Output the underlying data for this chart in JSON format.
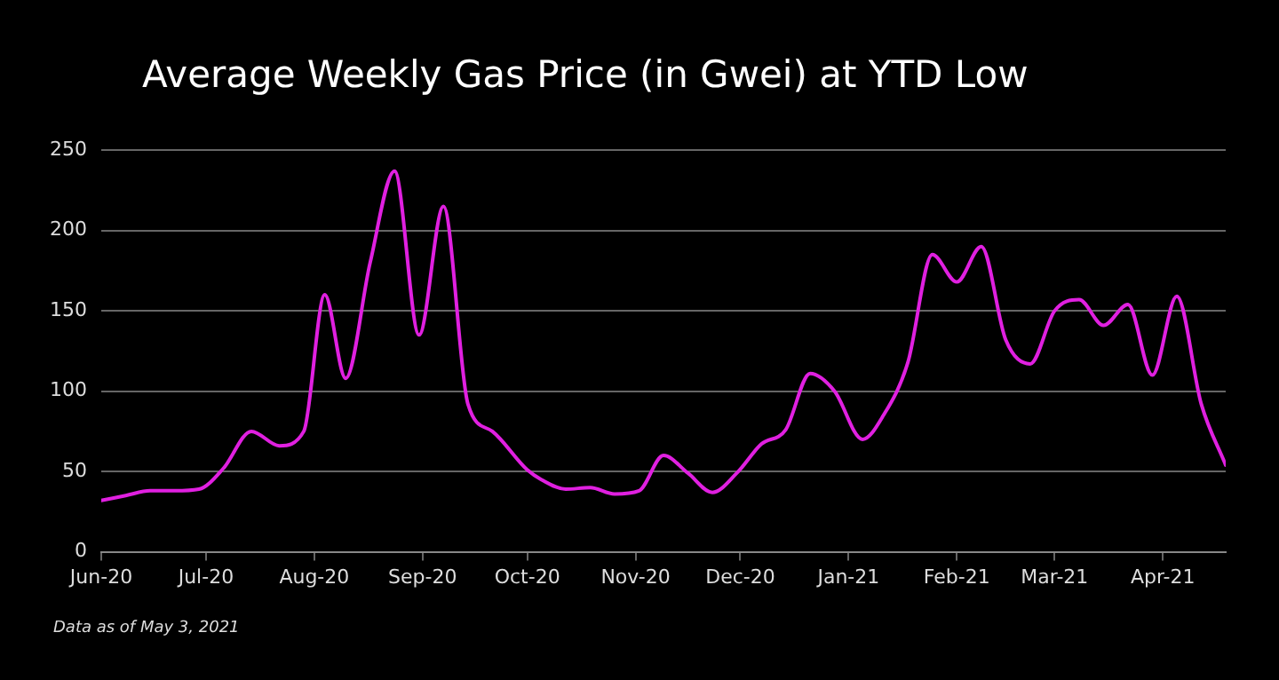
{
  "chart_data": {
    "type": "line",
    "title": "Average Weekly Gas Price (in Gwei) at YTD Low",
    "x": [
      "2020-06-01",
      "2020-06-08",
      "2020-06-15",
      "2020-06-22",
      "2020-06-29",
      "2020-07-06",
      "2020-07-14",
      "2020-07-22",
      "2020-07-29",
      "2020-08-04",
      "2020-08-10",
      "2020-08-17",
      "2020-08-24",
      "2020-08-31",
      "2020-09-07",
      "2020-09-14",
      "2020-09-21",
      "2020-10-01",
      "2020-10-05",
      "2020-10-12",
      "2020-10-19",
      "2020-10-26",
      "2020-11-02",
      "2020-11-09",
      "2020-11-16",
      "2020-11-23",
      "2020-11-30",
      "2020-12-07",
      "2020-12-14",
      "2020-12-21",
      "2020-12-28",
      "2021-01-05",
      "2021-01-11",
      "2021-01-18",
      "2021-01-25",
      "2021-02-01",
      "2021-02-08",
      "2021-02-15",
      "2021-02-22",
      "2021-03-01",
      "2021-03-08",
      "2021-03-15",
      "2021-03-22",
      "2021-03-29",
      "2021-04-05",
      "2021-04-12",
      "2021-04-19"
    ],
    "series": [
      {
        "color": "#e020e0",
        "values": [
          32,
          35,
          38,
          38,
          39,
          52,
          75,
          66,
          75,
          160,
          108,
          180,
          237,
          135,
          215,
          92,
          75,
          51,
          45,
          39,
          40,
          36,
          38,
          60,
          49,
          37,
          49,
          67,
          76,
          111,
          100,
          70,
          85,
          118,
          185,
          168,
          190,
          132,
          117,
          150,
          157,
          141,
          154,
          110,
          159,
          92,
          54
        ]
      }
    ],
    "xlim": [
      "2020-06-01",
      "2021-04-19"
    ],
    "xticks": [
      {
        "value": "2020-06-01",
        "label": "Jun-20"
      },
      {
        "value": "2020-07-01",
        "label": "Jul-20"
      },
      {
        "value": "2020-08-01",
        "label": "Aug-20"
      },
      {
        "value": "2020-09-01",
        "label": "Sep-20"
      },
      {
        "value": "2020-10-01",
        "label": "Oct-20"
      },
      {
        "value": "2020-11-01",
        "label": "Nov-20"
      },
      {
        "value": "2020-12-01",
        "label": "Dec-20"
      },
      {
        "value": "2021-01-01",
        "label": "Jan-21"
      },
      {
        "value": "2021-02-01",
        "label": "Feb-21"
      },
      {
        "value": "2021-03-01",
        "label": "Mar-21"
      },
      {
        "value": "2021-04-01",
        "label": "Apr-21"
      }
    ],
    "ylim": [
      0,
      250
    ],
    "yticks": [
      0,
      50,
      100,
      150,
      200,
      250
    ],
    "grid": "y",
    "legend": false,
    "marker": "none",
    "line_style": "solid",
    "annotations": [
      "Data as of May 3, 2021"
    ]
  }
}
